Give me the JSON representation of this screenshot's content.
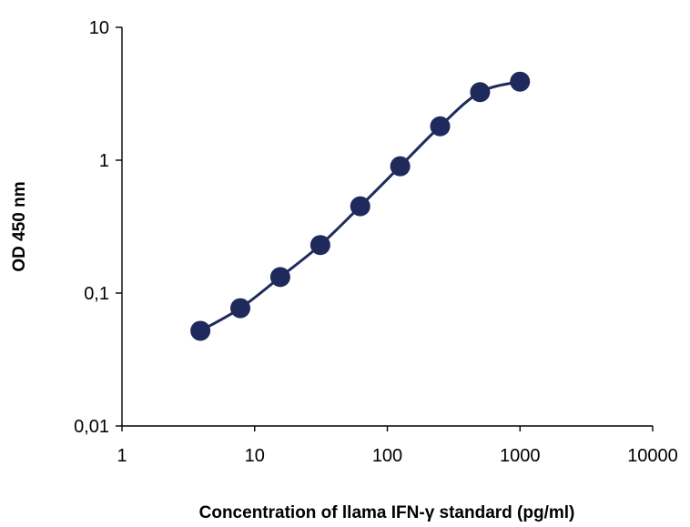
{
  "chart_data": {
    "type": "scatter",
    "title": "",
    "xlabel": "Concentration of llama IFN-γ standard  (pg/ml)",
    "ylabel": "OD 450 nm",
    "xscale": "log",
    "yscale": "log",
    "xlim": [
      1,
      10000
    ],
    "ylim": [
      0.01,
      10
    ],
    "x_ticks": [
      "1",
      "10",
      "100",
      "1000",
      "10000"
    ],
    "y_ticks": [
      "0,01",
      "0,1",
      "1",
      "10"
    ],
    "grid": false,
    "legend": "none",
    "series": [
      {
        "x": [
          3.9,
          7.8,
          15.6,
          31.25,
          62.5,
          125,
          250,
          500,
          1000
        ],
        "y": [
          0.052,
          0.077,
          0.132,
          0.23,
          0.45,
          0.9,
          1.8,
          3.25,
          3.9
        ]
      }
    ],
    "marker_color": "#1f2a5c",
    "line_color": "#1f2a5c"
  }
}
